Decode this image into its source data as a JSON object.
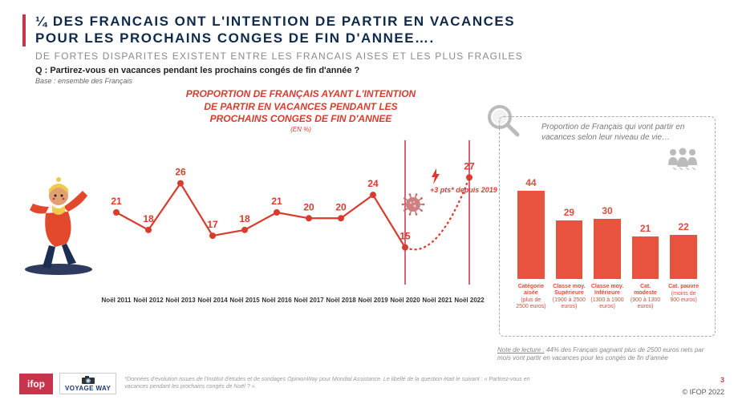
{
  "title": {
    "line1": "¼ DES FRANCAIS ONT L'INTENTION DE PARTIR EN VACANCES",
    "line2": "POUR LES PROCHAINS CONGES DE FIN D'ANNEE….",
    "sub": "DE FORTES DISPARITES EXISTENT ENTRE LES FRANCAIS AISES ET LES PLUS FRAGILES",
    "accent_color": "#c8344b",
    "main_color": "#0f2a4a",
    "sub_color": "#8a8a8a"
  },
  "question": {
    "label": "Q : Partirez-vous en vacances pendant les prochains congés de fin d'année ?",
    "base": "Base : ensemble des Français"
  },
  "line_chart": {
    "type": "line",
    "title_l1": "PROPORTION DE FRANÇAIS AYANT L'INTENTION",
    "title_l2": "DE PARTIR EN VACANCES PENDANT LES",
    "title_l3": "PROCHAINS CONGES DE FIN D'ANNEE",
    "unit": "(EN %)",
    "x_labels": [
      "Noël 2011",
      "Noël 2012",
      "Noël 2013",
      "Noël 2014",
      "Noël 2015",
      "Noël 2016",
      "Noël 2017",
      "Noël 2018",
      "Noël 2019",
      "Noël 2020",
      "Noël 2021",
      "Noël 2022"
    ],
    "values": [
      21,
      18,
      26,
      17,
      18,
      21,
      20,
      20,
      24,
      15,
      null,
      27
    ],
    "break_after_index": 9,
    "dotted_segments": [
      [
        9,
        11
      ]
    ],
    "line_color": "#d93b2e",
    "line_width": 2.2,
    "marker_color": "#d93b2e",
    "marker_radius": 4,
    "label_color": "#d93b2e",
    "label_fontsize": 12,
    "ylim": [
      10,
      32
    ],
    "annot_change": "+3 pts* depuis 2019",
    "virus_position_x_index": 9,
    "vertical_divider_1_x_index": 9,
    "vertical_divider_2_x_index": 11,
    "divider_color": "#c8344b"
  },
  "bar_chart": {
    "type": "bar",
    "panel_title": "Proportion de Français qui vont partir en vacances selon leur niveau de vie…",
    "categories": [
      {
        "name": "Catégorie aisée",
        "detail": "(plus de 2500 euros)",
        "value": 44
      },
      {
        "name": "Classe moy. Supérieure",
        "detail": "(1900 à 2500 euros)",
        "value": 29
      },
      {
        "name": "Classe moy. Inférieure",
        "detail": "(1300 à 1900 euros)",
        "value": 30
      },
      {
        "name": "Cat. modeste",
        "detail": "(900 à 1300 euros)",
        "value": 21
      },
      {
        "name": "Cat. pauvre",
        "detail": "(moins de 900 euros)",
        "value": 22
      }
    ],
    "ymax": 44,
    "bar_color": "#e7533e",
    "value_color": "#e14a3b",
    "value_fontsize": 12,
    "label_color": "#e14a3b",
    "background_color": "#ffffff",
    "border_color": "#aaaaaa"
  },
  "note_lecture": {
    "label": "Note de lecture :",
    "text": "44% des Français gagnant plus de 2500 euros nets par mois vont partir en vacances pour les congés de fin d'année"
  },
  "footnote": "*Données d'évolution issues de l'Institut d'études et de sondages OpinionWay pour Mondial Assistance. Le libellé de la question était le suivant : « Partirez-vous en vacances pendant les prochains congés de Noël ? ».",
  "logos": {
    "ifop": "ifop",
    "voyageway": "VOYAGE WAY"
  },
  "copyright": "© IFOP 2022",
  "page": "3",
  "icons": {
    "magnifier_color": "#bbbbbb",
    "people_color": "#bbbbbb",
    "virus_color": "#c76b6b",
    "lightning_color": "#d93b2e"
  },
  "snowboarder": {
    "jacket": "#e1482c",
    "pants": "#1b2f52",
    "scarf": "#f2c94c",
    "skin": "#e0a070",
    "board": "#2f3a5f",
    "hat": "#f2c94c"
  }
}
